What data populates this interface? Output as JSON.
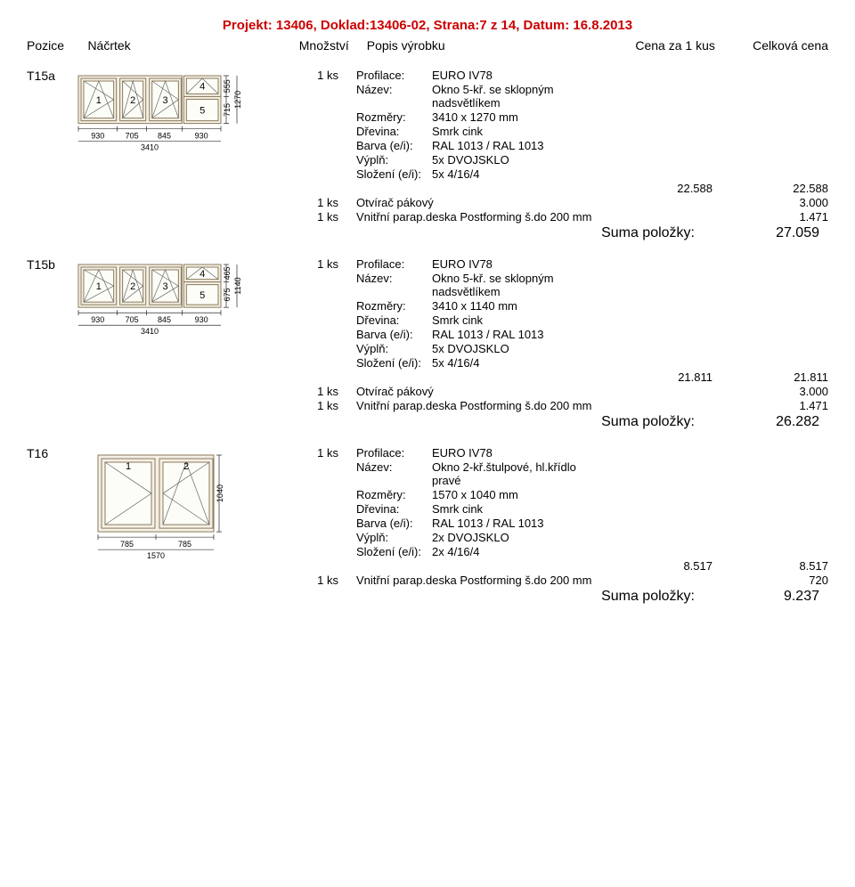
{
  "project_title": "Projekt: 13406, Doklad:13406-02, Strana:7 z 14, Datum: 16.8.2013",
  "headers": {
    "pozice": "Pozice",
    "nacrtek": "Náčrtek",
    "mnozstvi": "Množství",
    "popis": "Popis výrobku",
    "cena1": "Cena za 1 kus",
    "cenacelk": "Celková cena"
  },
  "items": [
    {
      "pozice": "T15a",
      "sketch": {
        "type": "window5",
        "totalWidth": 3410,
        "topHeight": 555,
        "bottomHeight": 715,
        "totalHeight": 1270,
        "segments": [
          930,
          705,
          845,
          930
        ],
        "panes": [
          "1",
          "2",
          "3",
          "4",
          "5"
        ]
      },
      "lines": [
        {
          "qty": "1 ks",
          "specs": [
            [
              "Profilace:",
              "EURO IV78"
            ],
            [
              "Název:",
              "Okno 5-kř. se sklopným nadsvětlíkem"
            ],
            [
              "Rozměry:",
              "3410 x 1270 mm"
            ],
            [
              "Dřevina:",
              "Smrk cink"
            ],
            [
              "Barva (e/i):",
              "RAL 1013 / RAL 1013"
            ],
            [
              "Výplň:",
              "5x DVOJSKLO"
            ],
            [
              "Složení (e/i):",
              "5x 4/16/4"
            ]
          ],
          "price1": "22.588",
          "price2": "22.588"
        },
        {
          "qty": "1 ks",
          "desc": "Otvírač pákový",
          "price1": "",
          "price2": "3.000"
        },
        {
          "qty": "1 ks",
          "desc": "Vnitřní parap.deska Postforming š.do 200 mm",
          "price1": "",
          "price2": "1.471"
        }
      ],
      "sum_label": "Suma položky:",
      "sum_value": "27.059"
    },
    {
      "pozice": "T15b",
      "sketch": {
        "type": "window5",
        "totalWidth": 3410,
        "topHeight": 465,
        "bottomHeight": 675,
        "totalHeight": 1140,
        "segments": [
          930,
          705,
          845,
          930
        ],
        "panes": [
          "1",
          "2",
          "3",
          "4",
          "5"
        ]
      },
      "lines": [
        {
          "qty": "1 ks",
          "specs": [
            [
              "Profilace:",
              "EURO IV78"
            ],
            [
              "Název:",
              "Okno 5-kř. se sklopným nadsvětlíkem"
            ],
            [
              "Rozměry:",
              "3410 x 1140 mm"
            ],
            [
              "Dřevina:",
              "Smrk cink"
            ],
            [
              "Barva (e/i):",
              "RAL 1013 / RAL 1013"
            ],
            [
              "Výplň:",
              "5x DVOJSKLO"
            ],
            [
              "Složení (e/i):",
              "5x 4/16/4"
            ]
          ],
          "price1": "21.811",
          "price2": "21.811"
        },
        {
          "qty": "1 ks",
          "desc": "Otvírač pákový",
          "price1": "",
          "price2": "3.000"
        },
        {
          "qty": "1 ks",
          "desc": "Vnitřní parap.deska Postforming š.do 200 mm",
          "price1": "",
          "price2": "1.471"
        }
      ],
      "sum_label": "Suma položky:",
      "sum_value": "26.282"
    },
    {
      "pozice": "T16",
      "sketch": {
        "type": "window2",
        "totalWidth": 1570,
        "totalHeight": 1040,
        "segments": [
          785,
          785
        ],
        "panes": [
          "1",
          "2"
        ]
      },
      "lines": [
        {
          "qty": "1 ks",
          "specs": [
            [
              "Profilace:",
              "EURO IV78"
            ],
            [
              "Název:",
              "Okno 2-kř.štulpové, hl.křídlo pravé"
            ],
            [
              "Rozměry:",
              "1570 x 1040 mm"
            ],
            [
              "Dřevina:",
              "Smrk cink"
            ],
            [
              "Barva (e/i):",
              "RAL 1013 / RAL 1013"
            ],
            [
              "Výplň:",
              "2x DVOJSKLO"
            ],
            [
              "Složení (e/i):",
              "2x 4/16/4"
            ]
          ],
          "price1": "8.517",
          "price2": "8.517"
        },
        {
          "qty": "1 ks",
          "desc": "Vnitřní parap.deska Postforming š.do 200 mm",
          "price1": "",
          "price2": "720"
        }
      ],
      "sum_label": "Suma položky:",
      "sum_value": "9.237"
    }
  ]
}
